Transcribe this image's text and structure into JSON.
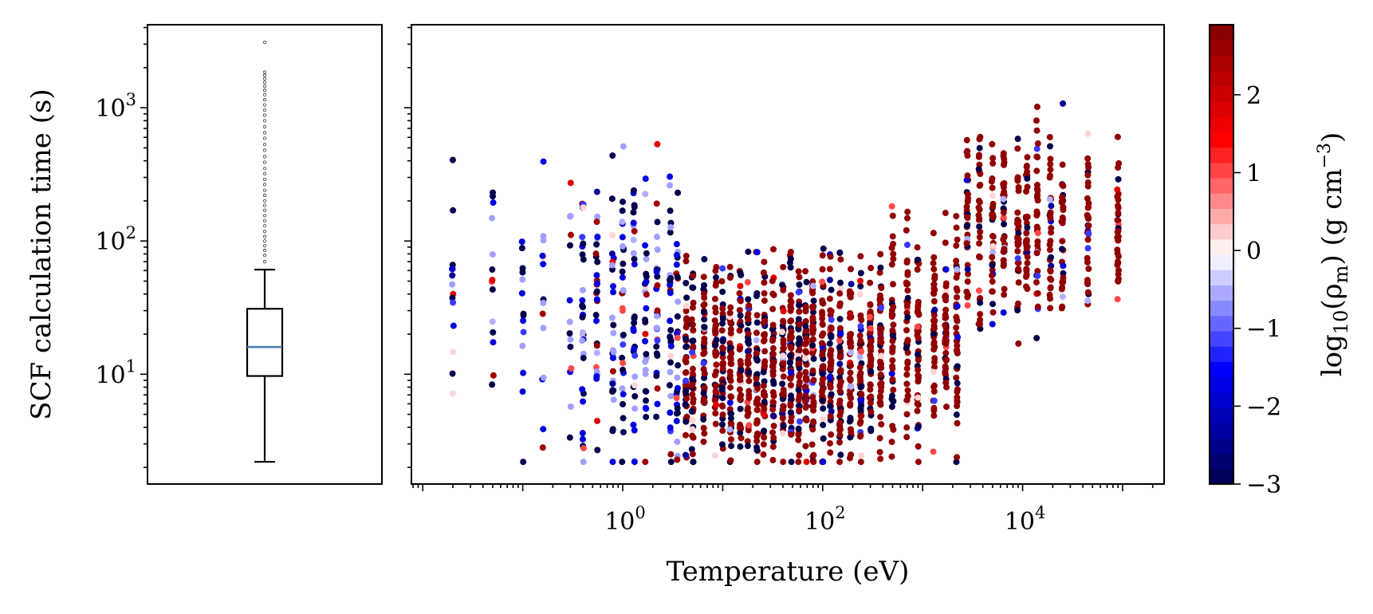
{
  "chart_data": [
    {
      "type": "box",
      "ylabel": "SCF calculation time (s)",
      "yscale": "log",
      "ylim": [
        1.5,
        4200
      ],
      "yticks": [
        {
          "value": 10,
          "base": "10",
          "exp": "1"
        },
        {
          "value": 100,
          "base": "10",
          "exp": "2"
        },
        {
          "value": 1000,
          "base": "10",
          "exp": "3"
        }
      ],
      "box": {
        "whisker_low": 2.2,
        "q1": 9.7,
        "median": 16,
        "q3": 31,
        "whisker_high": 61
      },
      "outliers": [
        70,
        78,
        85,
        92,
        100,
        108,
        118,
        130,
        142,
        155,
        170,
        185,
        200,
        220,
        240,
        265,
        290,
        320,
        350,
        390,
        430,
        480,
        530,
        590,
        650,
        720,
        800,
        880,
        960,
        1050,
        1150,
        1250,
        1350,
        1450,
        1550,
        1650,
        1750,
        1850,
        3100
      ]
    },
    {
      "type": "scatter",
      "xlabel": "Temperature (eV)",
      "xscale": "log",
      "xlim": [
        0.0077,
        260000
      ],
      "ylim": [
        1.5,
        4200
      ],
      "xticks": [
        {
          "value": 1,
          "base": "10",
          "exp": "0"
        },
        {
          "value": 100,
          "base": "10",
          "exp": "2"
        },
        {
          "value": 10000,
          "base": "10",
          "exp": "4"
        }
      ],
      "temperature_columns_eV": [
        0.02,
        0.05,
        0.1,
        0.16,
        0.3,
        0.4,
        0.55,
        0.8,
        1.0,
        1.3,
        1.7,
        2.2,
        3.0,
        3.5,
        4.3,
        5.0,
        6.5,
        8.5,
        10,
        12,
        15,
        18,
        22,
        26,
        32,
        40,
        48,
        58,
        68,
        80,
        100,
        120,
        150,
        190,
        240,
        300,
        380,
        500,
        700,
        900,
        1300,
        1700,
        2200,
        2800,
        3700,
        5000,
        6500,
        9000,
        11000,
        14000,
        19000,
        25000,
        45000,
        90000
      ],
      "series_colors": {
        "log10_rho_-3": "#00004c",
        "log10_rho_-2": "#1a1aff",
        "log10_rho_-1": "#8c8cff",
        "log10_rho_0": "#fde0e0",
        "log10_rho_1": "#ff2020",
        "log10_rho_2": "#800000"
      },
      "colorbar": {
        "label": "log10(ρm) (g cm⁻³)",
        "label_parts": {
          "prefix": "log",
          "sub10": "10",
          "open": "(ρ",
          "subm": "m",
          "mid": ") (g cm",
          "sup": "−3",
          "close": ")"
        },
        "vmin": -3.0,
        "vmax": 2.9,
        "ticks": [
          {
            "value": -3,
            "text": "−3"
          },
          {
            "value": -2,
            "text": "−2"
          },
          {
            "value": -1,
            "text": "−1"
          },
          {
            "value": 0,
            "text": "0"
          },
          {
            "value": 1,
            "text": "1"
          },
          {
            "value": 2,
            "text": "2"
          }
        ],
        "colormap": "seismic",
        "n_bands": 30
      }
    }
  ]
}
